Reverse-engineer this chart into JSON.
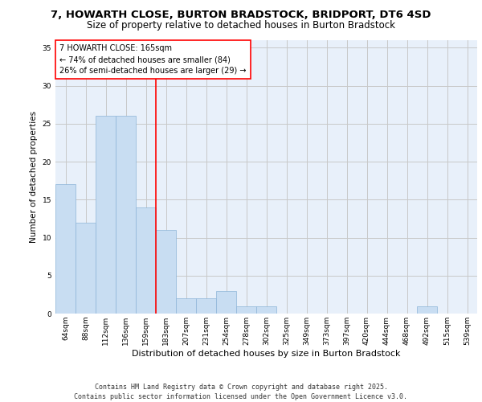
{
  "title1": "7, HOWARTH CLOSE, BURTON BRADSTOCK, BRIDPORT, DT6 4SD",
  "title2": "Size of property relative to detached houses in Burton Bradstock",
  "xlabel": "Distribution of detached houses by size in Burton Bradstock",
  "ylabel": "Number of detached properties",
  "bins": [
    "64sqm",
    "88sqm",
    "112sqm",
    "136sqm",
    "159sqm",
    "183sqm",
    "207sqm",
    "231sqm",
    "254sqm",
    "278sqm",
    "302sqm",
    "325sqm",
    "349sqm",
    "373sqm",
    "397sqm",
    "420sqm",
    "444sqm",
    "468sqm",
    "492sqm",
    "515sqm",
    "539sqm"
  ],
  "values": [
    17,
    12,
    26,
    26,
    14,
    11,
    2,
    2,
    3,
    1,
    1,
    0,
    0,
    0,
    0,
    0,
    0,
    0,
    1,
    0,
    0
  ],
  "bar_color": "#c8ddf2",
  "bar_edge_color": "#8db4d8",
  "grid_color": "#c8c8c8",
  "bg_color": "#e8f0fa",
  "red_line_x": 4.5,
  "annotation_text": "7 HOWARTH CLOSE: 165sqm\n← 74% of detached houses are smaller (84)\n26% of semi-detached houses are larger (29) →",
  "footer": "Contains HM Land Registry data © Crown copyright and database right 2025.\nContains public sector information licensed under the Open Government Licence v3.0.",
  "ylim": [
    0,
    36
  ],
  "yticks": [
    0,
    5,
    10,
    15,
    20,
    25,
    30,
    35
  ],
  "title1_fontsize": 9.5,
  "title2_fontsize": 8.5,
  "xlabel_fontsize": 8,
  "ylabel_fontsize": 7.5,
  "tick_fontsize": 6.5,
  "annotation_fontsize": 7,
  "footer_fontsize": 6
}
